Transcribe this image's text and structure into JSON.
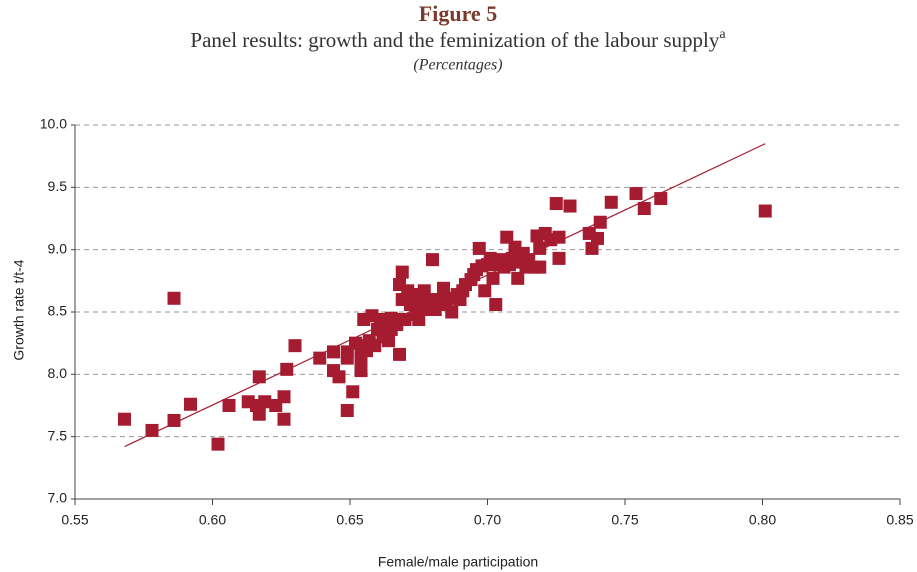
{
  "chart_data": {
    "type": "scatter",
    "title": "Figure 5",
    "subtitle": "Panel results: growth and the feminization of the labour supply",
    "subtitle_superscript": "a",
    "unit_note": "(Percentages)",
    "x_label": "Female/male participation",
    "y_label": "Growth rate t/t-4",
    "xlim": [
      0.55,
      0.85
    ],
    "xticks": [
      0.55,
      {
        "value": 0.6,
        "label": "0.60"
      },
      0.65,
      {
        "value": 0.7,
        "label": "0.70"
      },
      0.75,
      {
        "value": 0.8,
        "label": "0.80"
      },
      0.85
    ],
    "ylim": [
      7.0,
      10.0
    ],
    "yticks": [
      {
        "value": 7,
        "label": "7.0"
      },
      7.5,
      {
        "value": 8,
        "label": "8.0"
      },
      8.5,
      {
        "value": 9,
        "label": "9.0"
      },
      9.5,
      {
        "value": 10,
        "label": "10.0"
      }
    ],
    "grid": true,
    "color": "#a51c30",
    "trendline": {
      "x": [
        0.568,
        0.801
      ],
      "y": [
        7.42,
        9.85
      ]
    },
    "series": [
      {
        "color": "#a51c30",
        "x": [
          0.568,
          0.578,
          0.586,
          0.586,
          0.592,
          0.602,
          0.606,
          0.613,
          0.616,
          0.617,
          0.617,
          0.619,
          0.623,
          0.626,
          0.626,
          0.627,
          0.63,
          0.639,
          0.644,
          0.644,
          0.646,
          0.649,
          0.649,
          0.649,
          0.651,
          0.652,
          0.654,
          0.654,
          0.654,
          0.655,
          0.656,
          0.657,
          0.658,
          0.659,
          0.66,
          0.661,
          0.662,
          0.663,
          0.664,
          0.665,
          0.665,
          0.666,
          0.667,
          0.668,
          0.668,
          0.669,
          0.669,
          0.67,
          0.671,
          0.672,
          0.673,
          0.674,
          0.675,
          0.675,
          0.677,
          0.677,
          0.678,
          0.679,
          0.68,
          0.681,
          0.683,
          0.684,
          0.685,
          0.686,
          0.687,
          0.689,
          0.69,
          0.691,
          0.692,
          0.694,
          0.695,
          0.696,
          0.697,
          0.698,
          0.699,
          0.7,
          0.701,
          0.702,
          0.703,
          0.704,
          0.705,
          0.706,
          0.707,
          0.707,
          0.708,
          0.709,
          0.71,
          0.711,
          0.712,
          0.713,
          0.714,
          0.715,
          0.717,
          0.718,
          0.719,
          0.719,
          0.721,
          0.723,
          0.725,
          0.726,
          0.726,
          0.73,
          0.737,
          0.738,
          0.74,
          0.741,
          0.745,
          0.754,
          0.757,
          0.763,
          0.801
        ],
        "values": [
          7.64,
          7.55,
          7.63,
          8.61,
          7.76,
          7.44,
          7.75,
          7.78,
          7.75,
          7.68,
          7.98,
          7.78,
          7.75,
          7.82,
          7.64,
          8.04,
          8.23,
          8.13,
          8.18,
          8.03,
          7.98,
          8.18,
          7.71,
          8.13,
          7.86,
          8.25,
          8.03,
          8.13,
          8.23,
          8.44,
          8.19,
          8.27,
          8.47,
          8.23,
          8.36,
          8.44,
          8.3,
          8.37,
          8.27,
          8.36,
          8.45,
          8.44,
          8.4,
          8.72,
          8.16,
          8.82,
          8.6,
          8.44,
          8.67,
          8.56,
          8.64,
          8.48,
          8.44,
          8.56,
          8.6,
          8.67,
          8.52,
          8.6,
          8.92,
          8.52,
          8.6,
          8.69,
          8.56,
          8.61,
          8.5,
          8.64,
          8.6,
          8.67,
          8.72,
          8.76,
          8.8,
          8.84,
          9.01,
          8.87,
          8.67,
          8.88,
          8.93,
          8.77,
          8.56,
          8.88,
          8.92,
          8.86,
          8.91,
          9.1,
          8.88,
          8.93,
          9.02,
          8.77,
          8.9,
          8.97,
          8.86,
          8.92,
          8.86,
          9.11,
          8.86,
          9.01,
          9.13,
          9.08,
          9.37,
          8.93,
          9.1,
          9.35,
          9.13,
          9.01,
          9.09,
          9.22,
          9.38,
          9.45,
          9.33,
          9.41,
          9.31
        ]
      }
    ]
  }
}
